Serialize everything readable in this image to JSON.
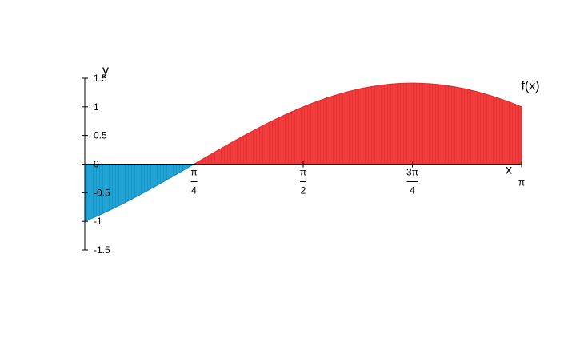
{
  "chart_data": {
    "type": "area",
    "function_label": "f(x)",
    "xlabel": "x",
    "ylabel": "y",
    "xlim": [
      0,
      3.14159
    ],
    "ylim": [
      -1.5,
      1.5
    ],
    "y_ticks": [
      {
        "value": 1.5,
        "label": "1.5"
      },
      {
        "value": 1,
        "label": "1"
      },
      {
        "value": 0.5,
        "label": "0.5"
      },
      {
        "value": 0,
        "label": "0"
      },
      {
        "value": -0.5,
        "label": "-0.5"
      },
      {
        "value": -1,
        "label": "-1"
      },
      {
        "value": -1.5,
        "label": "-1.5"
      }
    ],
    "x_ticks": [
      {
        "value": 0.785398,
        "numerator": "π",
        "denominator": "4"
      },
      {
        "value": 1.570796,
        "numerator": "π",
        "denominator": "2"
      },
      {
        "value": 2.356194,
        "numerator": "3π",
        "denominator": "4"
      },
      {
        "value": 3.141593,
        "numerator": "π",
        "denominator": ""
      }
    ],
    "x": [
      0,
      0.196,
      0.393,
      0.589,
      0.785,
      0.982,
      1.178,
      1.374,
      1.571,
      1.767,
      1.963,
      2.16,
      2.356,
      2.553,
      2.749,
      2.945,
      3.142
    ],
    "y": [
      -1.0,
      -0.783,
      -0.541,
      -0.276,
      0.0,
      0.278,
      0.541,
      0.785,
      1.0,
      1.176,
      1.307,
      1.387,
      1.414,
      1.387,
      1.307,
      1.176,
      1.0
    ],
    "fill_colors": {
      "negative": "#1ea5d8",
      "positive": "#f43b3b",
      "stripe_dark_negative": "#1588b8",
      "stripe_dark_positive": "#d92a2a"
    },
    "grid": false,
    "legend": false
  }
}
